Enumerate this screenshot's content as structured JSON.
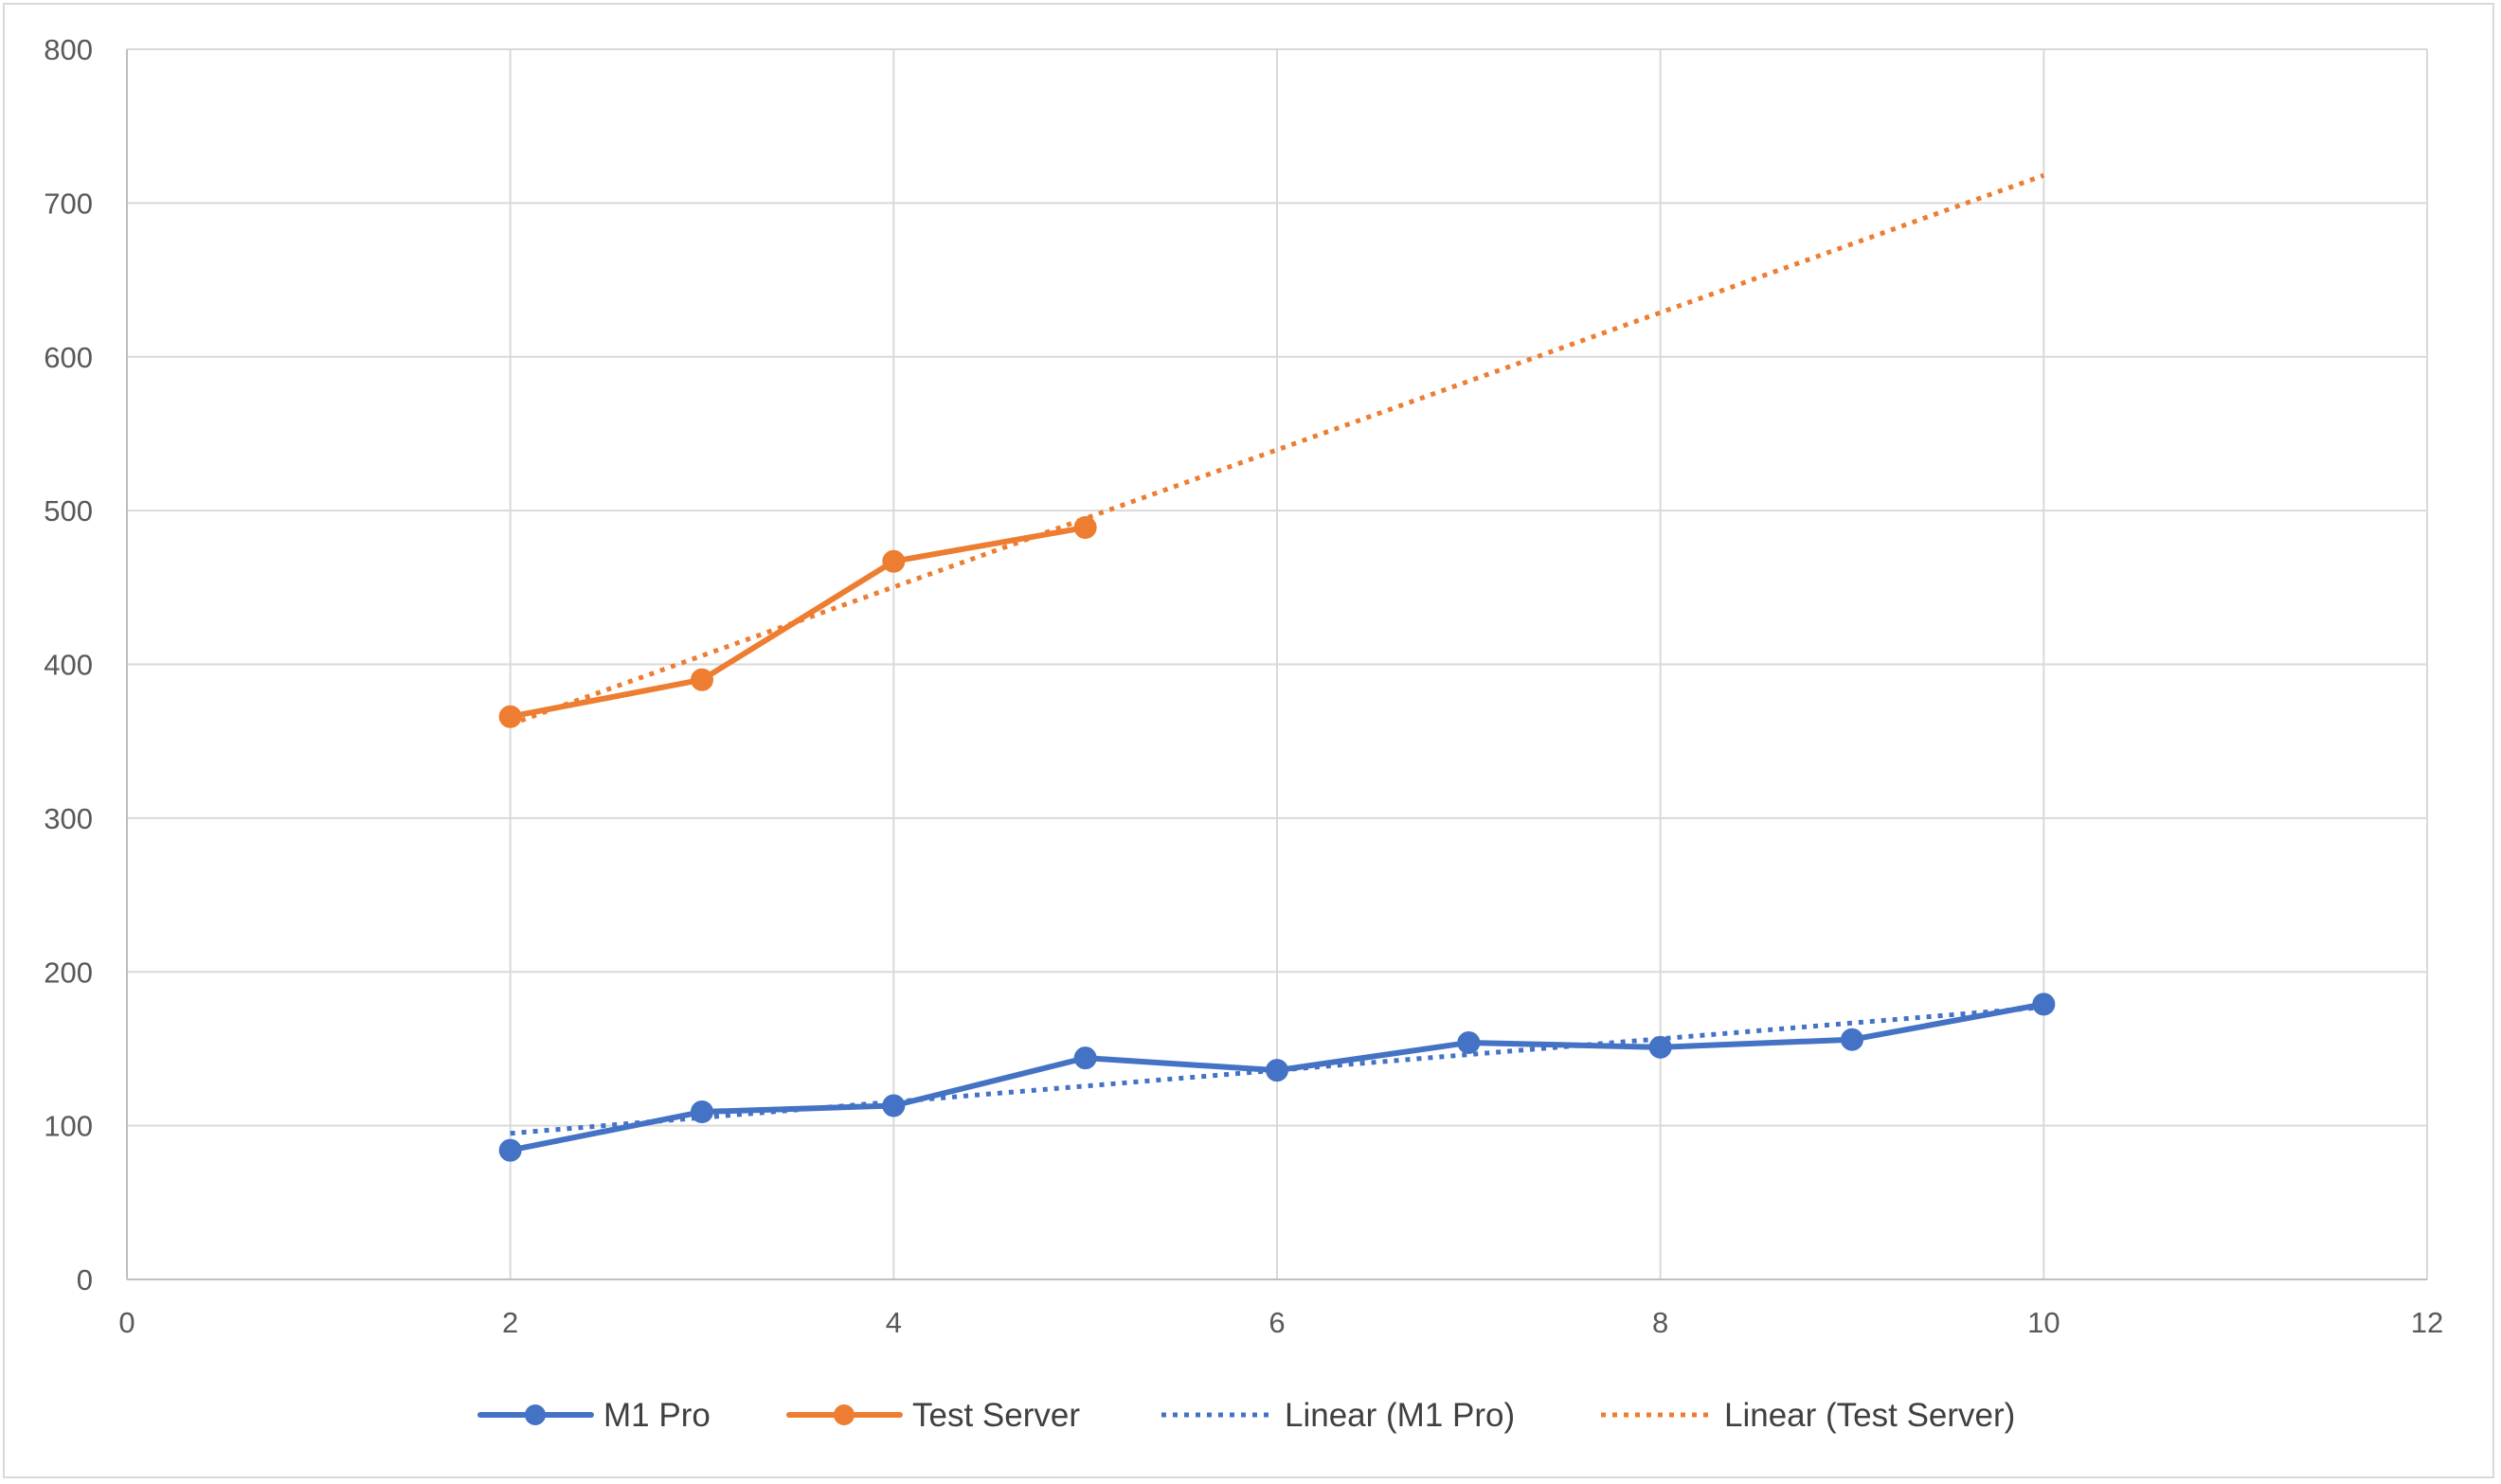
{
  "chart_data": {
    "type": "scatter",
    "title": "",
    "xlabel": "",
    "ylabel": "",
    "xlim": [
      0,
      12
    ],
    "ylim": [
      0,
      800
    ],
    "x_ticks": [
      0,
      2,
      4,
      6,
      8,
      10,
      12
    ],
    "y_ticks": [
      0,
      100,
      200,
      300,
      400,
      500,
      600,
      700,
      800
    ],
    "grid": true,
    "legend_position": "bottom",
    "series": [
      {
        "name": "M1 Pro",
        "style": "line-with-markers",
        "color": "#4472c4",
        "x": [
          2,
          3,
          4,
          5,
          6,
          7,
          8,
          9,
          10
        ],
        "y": [
          84,
          109,
          113,
          144,
          136,
          154,
          151,
          156,
          179
        ]
      },
      {
        "name": "Test Server",
        "style": "line-with-markers",
        "color": "#ed7d31",
        "x": [
          2,
          3,
          4,
          5
        ],
        "y": [
          366,
          390,
          467,
          489
        ]
      }
    ],
    "trendlines": [
      {
        "name": "Linear (M1 Pro)",
        "style": "dotted",
        "color": "#4472c4",
        "x": [
          2,
          10
        ],
        "y": [
          95,
          177
        ]
      },
      {
        "name": "Linear (Test Server)",
        "style": "dotted",
        "color": "#ed7d31",
        "x": [
          2,
          10
        ],
        "y": [
          361,
          718
        ]
      }
    ]
  }
}
